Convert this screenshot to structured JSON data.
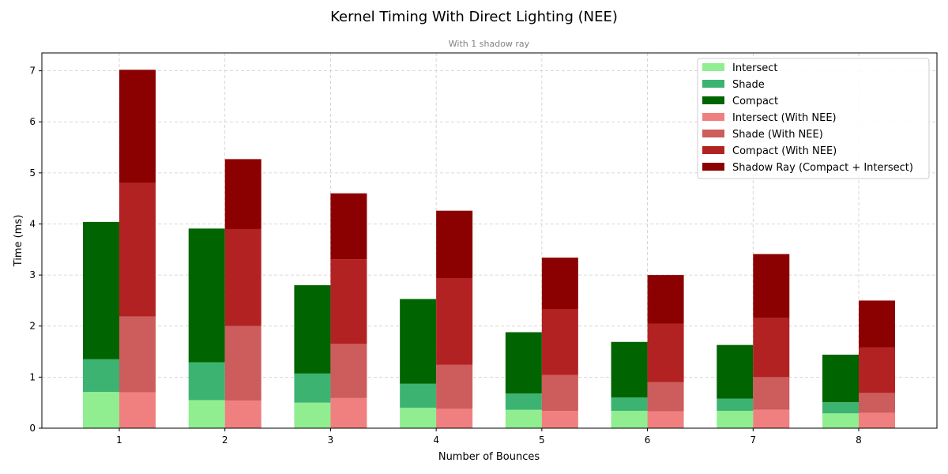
{
  "chart_data": {
    "type": "bar",
    "stacked": true,
    "grouped": true,
    "title": "Kernel Timing With Direct Lighting (NEE)",
    "subtitle": "With 1 shadow ray",
    "xlabel": "Number of Bounces",
    "ylabel": "Time (ms)",
    "ylim": [
      0,
      7.35
    ],
    "yticks": [
      0,
      1,
      2,
      3,
      4,
      5,
      6,
      7
    ],
    "categories": [
      "1",
      "2",
      "3",
      "4",
      "5",
      "6",
      "7",
      "8"
    ],
    "grid": true,
    "legend_position": "top-right",
    "groups": [
      {
        "name": "Without NEE",
        "series": [
          {
            "name": "Intersect",
            "color": "#90ee90",
            "values": [
              0.71,
              0.55,
              0.5,
              0.4,
              0.36,
              0.34,
              0.34,
              0.29
            ]
          },
          {
            "name": "Shade",
            "color": "#3cb371",
            "values": [
              0.64,
              0.74,
              0.57,
              0.47,
              0.32,
              0.26,
              0.24,
              0.22
            ]
          },
          {
            "name": "Compact",
            "color": "#006400",
            "values": [
              2.69,
              2.62,
              1.73,
              1.66,
              1.2,
              1.09,
              1.05,
              0.93
            ]
          }
        ]
      },
      {
        "name": "With NEE",
        "series": [
          {
            "name": "Intersect (With NEE)",
            "color": "#f08080",
            "values": [
              0.7,
              0.54,
              0.59,
              0.38,
              0.34,
              0.33,
              0.36,
              0.3
            ]
          },
          {
            "name": "Shade (With NEE)",
            "color": "#cd5c5c",
            "values": [
              1.49,
              1.46,
              1.06,
              0.86,
              0.7,
              0.57,
              0.64,
              0.39
            ]
          },
          {
            "name": "Compact (With NEE)",
            "color": "#b22222",
            "values": [
              2.61,
              1.9,
              1.66,
              1.7,
              1.29,
              1.15,
              1.16,
              0.89
            ]
          },
          {
            "name": "Shadow Ray (Compact + Intersect)",
            "color": "#8b0000",
            "values": [
              2.22,
              1.37,
              1.29,
              1.32,
              1.01,
              0.95,
              1.25,
              0.92
            ]
          }
        ]
      }
    ]
  }
}
